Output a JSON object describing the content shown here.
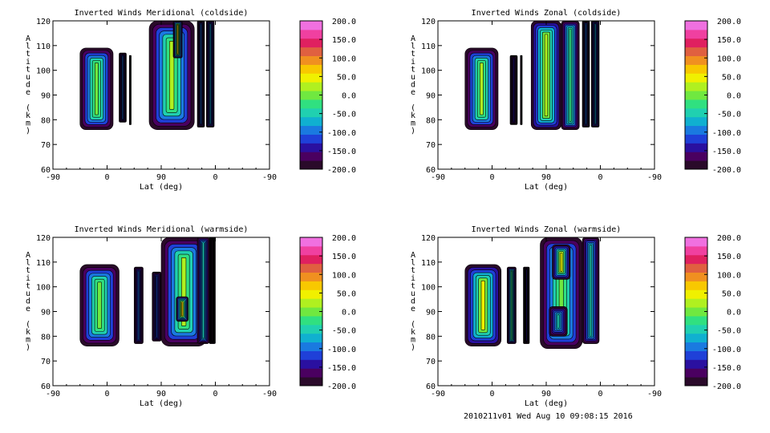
{
  "footer": "2010211v01 Wed Aug 10 09:08:15 2016",
  "palette": [
    "#2a0a2a",
    "#4a0060",
    "#2a10a0",
    "#1f40d8",
    "#1a7ae0",
    "#10b0d0",
    "#20d0b0",
    "#30e080",
    "#70e840",
    "#b0f020",
    "#f0f000",
    "#f8c800",
    "#f09020",
    "#e06040",
    "#e02060",
    "#f040a0",
    "#f070e0"
  ],
  "chart_data": [
    {
      "type": "heatmap",
      "title": "Inverted Winds Meridional (coldside)",
      "xlabel": "Lat (deg)",
      "ylabel": "Altitude (km)",
      "x_ticks": [
        "-90",
        "0",
        "90",
        "0",
        "-90"
      ],
      "y_ticks": [
        "60",
        "70",
        "80",
        "90",
        "100",
        "110",
        "120"
      ],
      "ylim": [
        60,
        120
      ],
      "colorbar_ticks": [
        "200.0",
        "150.0",
        "100.0",
        "50.0",
        "0.0",
        "-50.0",
        "-100.0",
        "-150.0",
        "-200.0"
      ],
      "clim": [
        -200,
        200
      ],
      "regions": [
        {
          "lat": [
            -45,
            10
          ],
          "alt": [
            76,
            109
          ],
          "core": 10
        },
        {
          "lat": [
            20,
            32
          ],
          "alt": [
            79,
            107
          ],
          "core": -110
        },
        {
          "lat": [
            37,
            40
          ],
          "alt": [
            78,
            106
          ],
          "core": -190
        },
        {
          "lat": [
            70,
            145
          ],
          "alt": [
            76,
            120
          ],
          "core": 20
        },
        {
          "lat": [
            110,
            125
          ],
          "alt": [
            105,
            120
          ],
          "core": 70
        },
        {
          "lat": [
            150,
            162
          ],
          "alt": [
            77,
            120
          ],
          "core": -110
        },
        {
          "lat": [
            165,
            178
          ],
          "alt": [
            77,
            120
          ],
          "core": -80
        }
      ]
    },
    {
      "type": "heatmap",
      "title": "Inverted Winds Zonal (coldside)",
      "xlabel": "Lat (deg)",
      "ylabel": "Altitude (km)",
      "x_ticks": [
        "-90",
        "0",
        "90",
        "0",
        "-90"
      ],
      "y_ticks": [
        "60",
        "70",
        "80",
        "90",
        "100",
        "110",
        "120"
      ],
      "ylim": [
        60,
        120
      ],
      "colorbar_ticks": [
        "200.0",
        "150.0",
        "100.0",
        "50.0",
        "0.0",
        "-50.0",
        "-100.0",
        "-150.0",
        "-200.0"
      ],
      "clim": [
        -200,
        200
      ],
      "regions": [
        {
          "lat": [
            -45,
            10
          ],
          "alt": [
            76,
            109
          ],
          "core": 20
        },
        {
          "lat": [
            30,
            42
          ],
          "alt": [
            78,
            106
          ],
          "core": -150
        },
        {
          "lat": [
            47,
            50
          ],
          "alt": [
            78,
            106
          ],
          "core": -190
        },
        {
          "lat": [
            65,
            115
          ],
          "alt": [
            76,
            120
          ],
          "core": 30
        },
        {
          "lat": [
            115,
            145
          ],
          "alt": [
            76,
            120
          ],
          "core": -20
        },
        {
          "lat": [
            150,
            162
          ],
          "alt": [
            77,
            120
          ],
          "core": -100
        },
        {
          "lat": [
            165,
            178
          ],
          "alt": [
            77,
            120
          ],
          "core": -80
        }
      ]
    },
    {
      "type": "heatmap",
      "title": "Inverted Winds Meridional (warmside)",
      "xlabel": "Lat (deg)",
      "ylabel": "Altitude (km)",
      "x_ticks": [
        "-90",
        "0",
        "90",
        "0",
        "-90"
      ],
      "y_ticks": [
        "60",
        "70",
        "80",
        "90",
        "100",
        "110",
        "120"
      ],
      "ylim": [
        60,
        120
      ],
      "colorbar_ticks": [
        "200.0",
        "150.0",
        "100.0",
        "50.0",
        "0.0",
        "-50.0",
        "-100.0",
        "-150.0",
        "-200.0"
      ],
      "clim": [
        -200,
        200
      ],
      "regions": [
        {
          "lat": [
            -45,
            20
          ],
          "alt": [
            76,
            109
          ],
          "core": 10
        },
        {
          "lat": [
            45,
            60
          ],
          "alt": [
            77,
            108
          ],
          "core": -110
        },
        {
          "lat": [
            75,
            90
          ],
          "alt": [
            78,
            106
          ],
          "core": -120
        },
        {
          "lat": [
            90,
            165
          ],
          "alt": [
            76,
            120
          ],
          "core": 15
        },
        {
          "lat": [
            115,
            135
          ],
          "alt": [
            86,
            96
          ],
          "core": 70
        },
        {
          "lat": [
            150,
            170
          ],
          "alt": [
            77,
            120
          ],
          "core": -40
        },
        {
          "lat": [
            170,
            180
          ],
          "alt": [
            77,
            120
          ],
          "core": -190
        }
      ]
    },
    {
      "type": "heatmap",
      "title": "Inverted Winds Zonal (warmside)",
      "xlabel": "Lat (deg)",
      "ylabel": "Altitude (km)",
      "x_ticks": [
        "-90",
        "0",
        "90",
        "0",
        "-90"
      ],
      "y_ticks": [
        "60",
        "70",
        "80",
        "90",
        "100",
        "110",
        "120"
      ],
      "ylim": [
        60,
        120
      ],
      "colorbar_ticks": [
        "200.0",
        "150.0",
        "100.0",
        "50.0",
        "0.0",
        "-50.0",
        "-100.0",
        "-150.0",
        "-200.0"
      ],
      "clim": [
        -200,
        200
      ],
      "regions": [
        {
          "lat": [
            -45,
            15
          ],
          "alt": [
            76,
            109
          ],
          "core": 40
        },
        {
          "lat": [
            25,
            40
          ],
          "alt": [
            77,
            108
          ],
          "core": -20
        },
        {
          "lat": [
            52,
            62
          ],
          "alt": [
            77,
            108
          ],
          "core": -150
        },
        {
          "lat": [
            80,
            150
          ],
          "alt": [
            75,
            120
          ],
          "core": 10
        },
        {
          "lat": [
            100,
            130
          ],
          "alt": [
            103,
            117
          ],
          "core": 60
        },
        {
          "lat": [
            95,
            125
          ],
          "alt": [
            80,
            92
          ],
          "core": -60
        },
        {
          "lat": [
            150,
            178
          ],
          "alt": [
            77,
            120
          ],
          "core": -60
        }
      ]
    }
  ]
}
